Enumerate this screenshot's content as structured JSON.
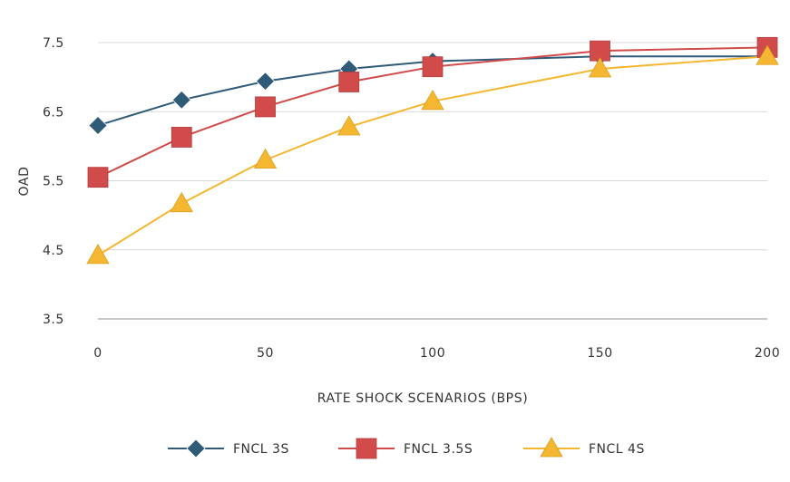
{
  "chart_data": {
    "type": "line",
    "x": [
      0,
      25,
      50,
      75,
      100,
      150,
      200
    ],
    "xticks": [
      0,
      50,
      100,
      150,
      200
    ],
    "yticks": [
      3.5,
      4.5,
      5.5,
      6.5,
      7.5
    ],
    "xlim": [
      0,
      200
    ],
    "ylim": [
      3.5,
      7.5
    ],
    "xlabel": "RATE SHOCK SCENARIOS (BPS)",
    "ylabel": "OAD",
    "grid": "horizontal",
    "legend_position": "bottom",
    "series": [
      {
        "name": "FNCL 3S",
        "color": "#2f5a78",
        "marker": "diamond",
        "values": [
          6.3,
          6.67,
          6.94,
          7.12,
          7.23,
          7.3,
          7.3
        ]
      },
      {
        "name": "FNCL 3.5S",
        "color": "#d14b4b",
        "marker": "square",
        "values": [
          5.55,
          6.13,
          6.57,
          6.93,
          7.15,
          7.38,
          7.43
        ]
      },
      {
        "name": "FNCL 4S",
        "color": "#f5b731",
        "marker": "triangle",
        "values": [
          4.42,
          5.17,
          5.8,
          6.28,
          6.65,
          7.12,
          7.3
        ]
      }
    ]
  }
}
